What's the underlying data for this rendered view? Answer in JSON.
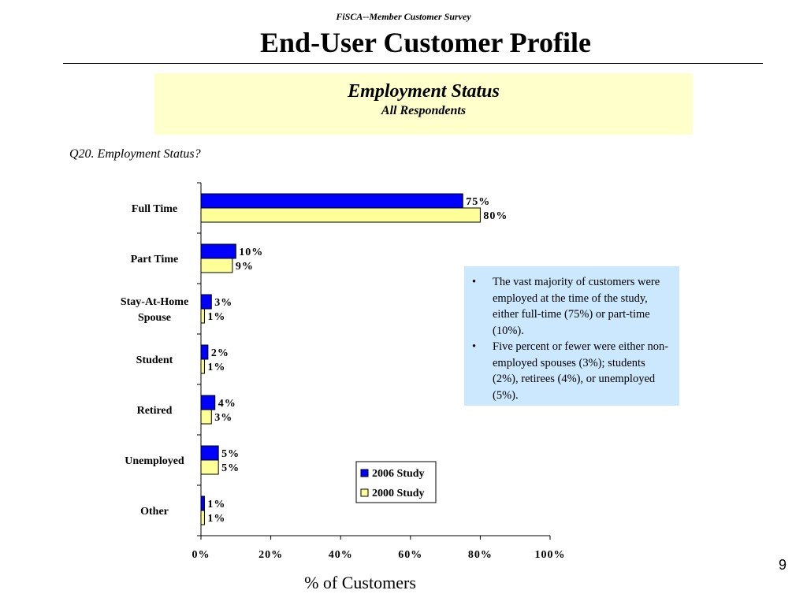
{
  "header": {
    "survey_title": "FiSCA--Member Customer Survey",
    "page_title": "End-User Customer Profile"
  },
  "banner": {
    "title": "Employment Status",
    "subtitle": "All Respondents"
  },
  "question": "Q20. Employment Status?",
  "callout": {
    "bullets": [
      "The vast majority of customers were employed at the time of the study, either full-time (75%) or part-time (10%).",
      "Five percent or fewer were either non-employed spouses (3%); students (2%), retirees (4%), or unemployed (5%)."
    ]
  },
  "page_number": "9",
  "chart_data": {
    "type": "bar",
    "orientation": "horizontal",
    "categories": [
      "Full Time",
      "Part Time",
      "Stay-At-Home Spouse",
      "Student",
      "Retired",
      "Unemployed",
      "Other"
    ],
    "series": [
      {
        "name": "2006 Study",
        "values": [
          75,
          10,
          3,
          2,
          4,
          5,
          1
        ],
        "color": "#0000ff"
      },
      {
        "name": "2000 Study",
        "values": [
          80,
          9,
          1,
          1,
          3,
          5,
          1
        ],
        "color": "#ffff99"
      }
    ],
    "xlabel": "% of Customers",
    "ylabel": "",
    "xlim": [
      0,
      100
    ],
    "x_ticks": [
      0,
      20,
      40,
      60,
      80,
      100
    ],
    "value_suffix": "%",
    "grid": false,
    "legend_position": "bottom-right"
  }
}
